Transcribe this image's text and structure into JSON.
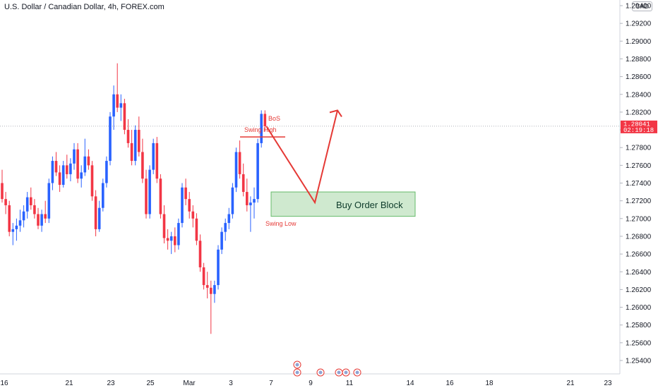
{
  "header": {
    "title": "U.S. Dollar / Canadian Dollar, 4h, FOREX.com",
    "currency": "CAD"
  },
  "colors": {
    "up": "#2962ff",
    "down": "#f23645",
    "arrow": "#e53935",
    "zone_fill": "#cfe9cf",
    "zone_stroke": "#66bb6a",
    "price_tag": "#f23645"
  },
  "chart_data": {
    "type": "candlestick",
    "title": "U.S. Dollar / Canadian Dollar, 4h, FOREX.com",
    "ylim": [
      1.2525,
      1.2935
    ],
    "yticks": [
      "1.25400",
      "1.25600",
      "1.25800",
      "1.26000",
      "1.26200",
      "1.26400",
      "1.26600",
      "1.26800",
      "1.27000",
      "1.27200",
      "1.27400",
      "1.27600",
      "1.27800",
      "1.28000",
      "1.28200",
      "1.28400",
      "1.28600",
      "1.28800",
      "1.29000",
      "1.29200",
      "1.29400"
    ],
    "xticks": [
      "16",
      "21",
      "23",
      "25",
      "Mar",
      "3",
      "7",
      "9",
      "11",
      "14",
      "16",
      "18",
      "21",
      "23"
    ],
    "current_price": {
      "value": "1.28041",
      "countdown": "02:19:18"
    },
    "candles": [
      [
        1.274,
        1.2755,
        1.2718,
        1.2722
      ],
      [
        1.2722,
        1.273,
        1.2705,
        1.2715
      ],
      [
        1.2715,
        1.272,
        1.268,
        1.2685
      ],
      [
        1.2685,
        1.2695,
        1.267,
        1.2688
      ],
      [
        1.2688,
        1.27,
        1.2675,
        1.2692
      ],
      [
        1.2692,
        1.271,
        1.2685,
        1.2698
      ],
      [
        1.2698,
        1.2715,
        1.269,
        1.2708
      ],
      [
        1.2708,
        1.273,
        1.27,
        1.2724
      ],
      [
        1.2724,
        1.2735,
        1.271,
        1.2715
      ],
      [
        1.2715,
        1.2722,
        1.27,
        1.2705
      ],
      [
        1.2705,
        1.2712,
        1.2688,
        1.2692
      ],
      [
        1.2692,
        1.271,
        1.2685,
        1.2705
      ],
      [
        1.2705,
        1.272,
        1.2695,
        1.27
      ],
      [
        1.27,
        1.2745,
        1.2695,
        1.274
      ],
      [
        1.274,
        1.277,
        1.2732,
        1.2765
      ],
      [
        1.2765,
        1.2775,
        1.2748,
        1.2752
      ],
      [
        1.2752,
        1.276,
        1.273,
        1.2738
      ],
      [
        1.2738,
        1.2765,
        1.2735,
        1.276
      ],
      [
        1.276,
        1.2772,
        1.2745,
        1.275
      ],
      [
        1.275,
        1.2768,
        1.2742,
        1.2762
      ],
      [
        1.2762,
        1.2785,
        1.2755,
        1.2778
      ],
      [
        1.2778,
        1.2785,
        1.274,
        1.2745
      ],
      [
        1.2745,
        1.276,
        1.2735,
        1.2752
      ],
      [
        1.2752,
        1.279,
        1.2748,
        1.277
      ],
      [
        1.277,
        1.2778,
        1.2755,
        1.276
      ],
      [
        1.276,
        1.2765,
        1.272,
        1.2725
      ],
      [
        1.2725,
        1.2732,
        1.268,
        1.2688
      ],
      [
        1.2688,
        1.272,
        1.2685,
        1.2712
      ],
      [
        1.2712,
        1.2745,
        1.2708,
        1.274
      ],
      [
        1.274,
        1.277,
        1.2735,
        1.2765
      ],
      [
        1.2765,
        1.282,
        1.276,
        1.2815
      ],
      [
        1.2815,
        1.285,
        1.28,
        1.284
      ],
      [
        1.284,
        1.2875,
        1.282,
        1.2825
      ],
      [
        1.2825,
        1.284,
        1.281,
        1.283
      ],
      [
        1.283,
        1.2835,
        1.2795,
        1.28
      ],
      [
        1.28,
        1.2812,
        1.278,
        1.2785
      ],
      [
        1.2785,
        1.28,
        1.276,
        1.2765
      ],
      [
        1.2765,
        1.2805,
        1.276,
        1.28
      ],
      [
        1.28,
        1.2815,
        1.277,
        1.2775
      ],
      [
        1.2775,
        1.279,
        1.274,
        1.2745
      ],
      [
        1.2745,
        1.2755,
        1.27,
        1.2705
      ],
      [
        1.2705,
        1.276,
        1.27,
        1.2755
      ],
      [
        1.2755,
        1.279,
        1.275,
        1.2785
      ],
      [
        1.2785,
        1.2792,
        1.274,
        1.2745
      ],
      [
        1.2745,
        1.275,
        1.27,
        1.2705
      ],
      [
        1.2705,
        1.2715,
        1.2672,
        1.2678
      ],
      [
        1.2678,
        1.2688,
        1.2665,
        1.2675
      ],
      [
        1.2675,
        1.2685,
        1.266,
        1.268
      ],
      [
        1.268,
        1.269,
        1.2662,
        1.267
      ],
      [
        1.267,
        1.27,
        1.2665,
        1.2695
      ],
      [
        1.2695,
        1.274,
        1.269,
        1.2735
      ],
      [
        1.2735,
        1.2745,
        1.2715,
        1.2722
      ],
      [
        1.2722,
        1.273,
        1.27,
        1.2708
      ],
      [
        1.2708,
        1.2715,
        1.269,
        1.27
      ],
      [
        1.27,
        1.2706,
        1.267,
        1.2675
      ],
      [
        1.2675,
        1.2682,
        1.264,
        1.2645
      ],
      [
        1.2645,
        1.265,
        1.262,
        1.2625
      ],
      [
        1.2625,
        1.264,
        1.261,
        1.2622
      ],
      [
        1.2622,
        1.263,
        1.257,
        1.2615
      ],
      [
        1.2615,
        1.263,
        1.2605,
        1.2625
      ],
      [
        1.2625,
        1.267,
        1.262,
        1.2665
      ],
      [
        1.2665,
        1.269,
        1.266,
        1.2685
      ],
      [
        1.2685,
        1.27,
        1.2675,
        1.2695
      ],
      [
        1.2695,
        1.2712,
        1.2688,
        1.2705
      ],
      [
        1.2705,
        1.274,
        1.27,
        1.2735
      ],
      [
        1.2735,
        1.278,
        1.273,
        1.2775
      ],
      [
        1.2775,
        1.2788,
        1.2745,
        1.275
      ],
      [
        1.275,
        1.2762,
        1.2725,
        1.273
      ],
      [
        1.273,
        1.2745,
        1.2708,
        1.2715
      ],
      [
        1.2715,
        1.2725,
        1.2685,
        1.2718
      ],
      [
        1.2718,
        1.2735,
        1.27,
        1.2722
      ],
      [
        1.2722,
        1.279,
        1.2718,
        1.2785
      ],
      [
        1.2785,
        1.2822,
        1.278,
        1.2818
      ],
      [
        1.2818,
        1.2822,
        1.2798,
        1.2804
      ]
    ]
  },
  "annotations": {
    "bos": "BoS",
    "swing_high": "Swing High",
    "swing_low": "Swing Low",
    "order_block": "Buy Order Block"
  }
}
